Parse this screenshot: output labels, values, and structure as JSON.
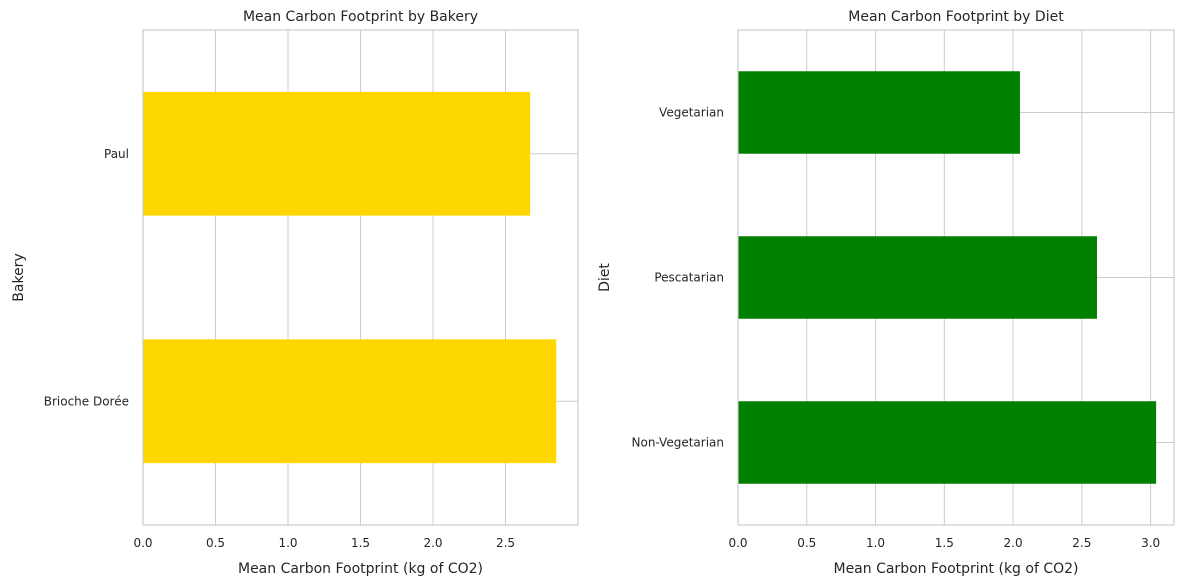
{
  "chart_data": [
    {
      "type": "bar",
      "orientation": "horizontal",
      "title": "Mean Carbon Footprint by Bakery",
      "xlabel": "Mean Carbon Footprint (kg of CO2)",
      "ylabel": "Bakery",
      "categories": [
        "Brioche Dorée",
        "Paul"
      ],
      "values": [
        2.85,
        2.67
      ],
      "xlim": [
        0,
        3.0
      ],
      "xticks": [
        "0.0",
        "0.5",
        "1.0",
        "1.5",
        "2.0",
        "2.5"
      ],
      "color": "#FFD700",
      "grid": true,
      "legend": "none"
    },
    {
      "type": "bar",
      "orientation": "horizontal",
      "title": "Mean Carbon Footprint by Diet",
      "xlabel": "Mean Carbon Footprint (kg of CO2)",
      "ylabel": "Diet",
      "categories": [
        "Non-Vegetarian",
        "Pescatarian",
        "Vegetarian"
      ],
      "values": [
        3.04,
        2.61,
        2.05
      ],
      "xlim": [
        0,
        3.17
      ],
      "xticks": [
        "0.0",
        "0.5",
        "1.0",
        "1.5",
        "2.0",
        "2.5",
        "3.0"
      ],
      "color": "#008000",
      "grid": true,
      "legend": "none"
    }
  ]
}
